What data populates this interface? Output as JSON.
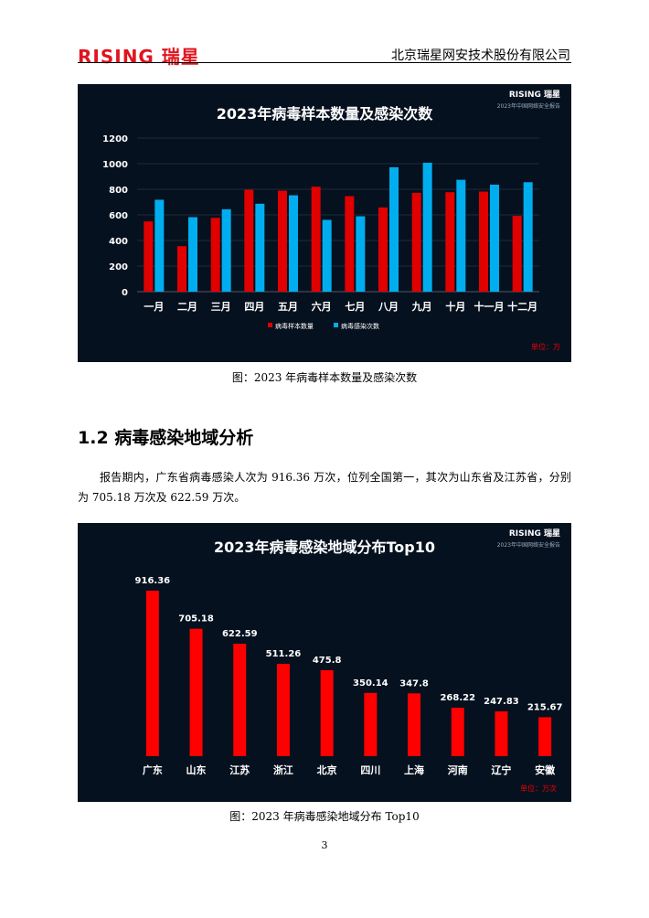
{
  "header": {
    "logo": "RISING 瑞星",
    "company": "北京瑞星网安技术股份有限公司"
  },
  "chart1": {
    "brand": "RISING 瑞星",
    "brand_sub": "2023年中国网络安全报告",
    "caption": "图：2023 年病毒样本数量及感染次数"
  },
  "section": {
    "heading": "1.2 病毒感染地域分析",
    "paragraph": "报告期内，广东省病毒感染人次为 916.36 万次，位列全国第一，其次为山东省及江苏省，分别为 705.18 万次及 622.59 万次。"
  },
  "chart2": {
    "brand": "RISING 瑞星",
    "brand_sub": "2023年中国网络安全报告",
    "caption": "图：2023 年病毒感染地域分布 Top10"
  },
  "page_number": "3",
  "chart_data": [
    {
      "type": "bar",
      "title": "2023年病毒样本数量及感染次数",
      "categories": [
        "一月",
        "二月",
        "三月",
        "四月",
        "五月",
        "六月",
        "七月",
        "八月",
        "九月",
        "十月",
        "十一月",
        "十二月"
      ],
      "series": [
        {
          "name": "病毒样本数量",
          "color": "#e00000",
          "values": [
            549,
            356,
            577,
            796,
            789,
            820,
            746,
            658,
            772,
            777,
            782,
            592
          ]
        },
        {
          "name": "病毒感染次数",
          "color": "#00aeef",
          "values": [
            718,
            582,
            644,
            687,
            753,
            561,
            589,
            972,
            1007,
            874,
            836,
            855
          ]
        }
      ],
      "ylim": [
        0,
        1200
      ],
      "yticks": [
        0,
        200,
        400,
        600,
        800,
        1000,
        1200
      ],
      "unit": "单位：万",
      "legend": "bottom",
      "grid": true
    },
    {
      "type": "bar",
      "title": "2023年病毒感染地域分布Top10",
      "categories": [
        "广东",
        "山东",
        "江苏",
        "浙江",
        "北京",
        "四川",
        "上海",
        "河南",
        "辽宁",
        "安徽"
      ],
      "values": [
        916.36,
        705.18,
        622.59,
        511.26,
        475.8,
        350.14,
        347.8,
        268.22,
        247.83,
        215.67
      ],
      "labels": [
        "916.36",
        "705.18",
        "622.59",
        "511.26",
        "475.8",
        "350.14",
        "347.8",
        "268.22",
        "247.83",
        "215.67"
      ],
      "color": "#ff0000",
      "ylim": [
        0,
        1000
      ],
      "unit": "单位：万次"
    }
  ]
}
